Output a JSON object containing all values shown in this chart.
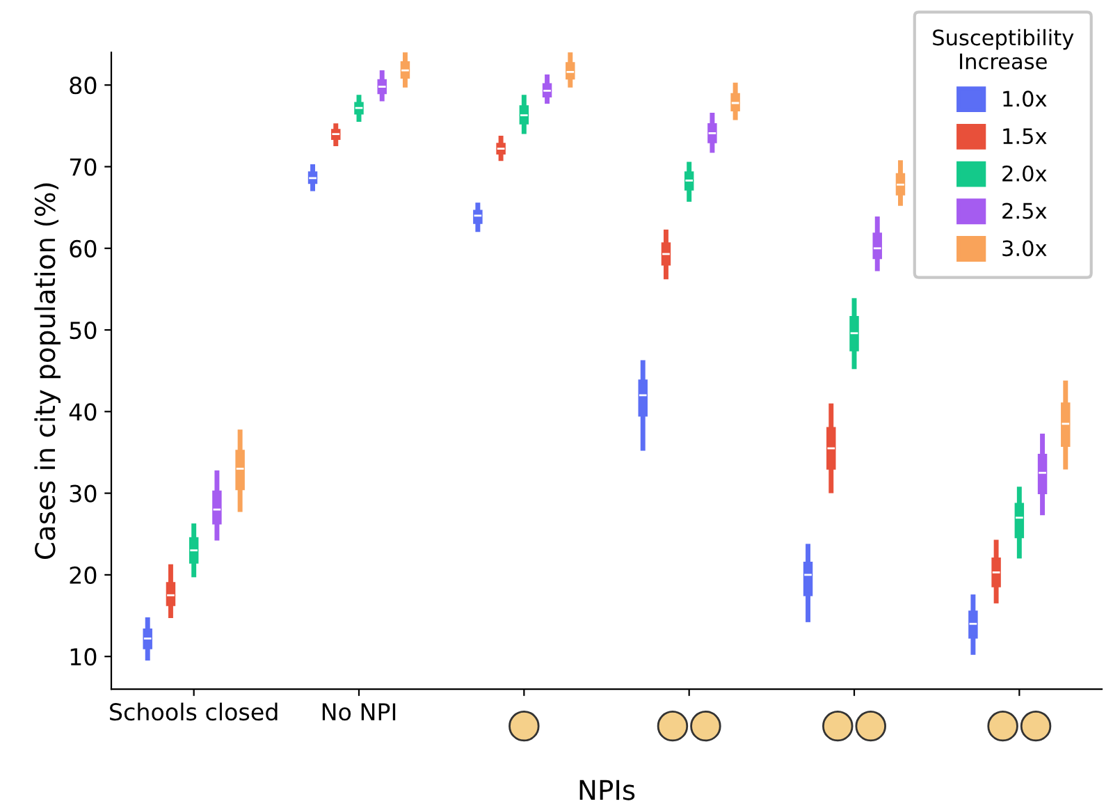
{
  "chart_data": {
    "type": "box",
    "xlabel": "NPIs",
    "ylabel": "Cases in city population (%)",
    "legend_title": "Susceptibility\nIncrease",
    "legend": "top right",
    "grid": false,
    "categories": [
      "Schools closed",
      "No NPI",
      null,
      null,
      null,
      null
    ],
    "ylim": [
      6,
      84
    ],
    "yticks": [
      10,
      20,
      30,
      40,
      50,
      60,
      70,
      80
    ],
    "series": [
      {
        "name": "1.0x",
        "color": "#5b6ef5",
        "boxes": [
          {
            "low": 9.8,
            "q1": 11.0,
            "median": 12.2,
            "q3": 13.3,
            "high": 14.5
          },
          {
            "low": 67.3,
            "q1": 68.0,
            "median": 68.6,
            "q3": 69.3,
            "high": 70.0
          },
          {
            "low": 62.3,
            "q1": 63.1,
            "median": 64.0,
            "q3": 64.6,
            "high": 65.3
          },
          {
            "low": 35.5,
            "q1": 39.5,
            "median": 42.0,
            "q3": 43.8,
            "high": 46.0
          },
          {
            "low": 14.5,
            "q1": 17.5,
            "median": 20.0,
            "q3": 21.5,
            "high": 23.5
          },
          {
            "low": 10.5,
            "q1": 12.3,
            "median": 14.0,
            "q3": 15.5,
            "high": 17.3
          }
        ]
      },
      {
        "name": "1.5x",
        "color": "#e8503a",
        "boxes": [
          {
            "low": 15.0,
            "q1": 16.3,
            "median": 17.5,
            "q3": 19.0,
            "high": 21.0
          },
          {
            "low": 72.8,
            "q1": 73.4,
            "median": 74.0,
            "q3": 74.5,
            "high": 75.0
          },
          {
            "low": 71.0,
            "q1": 71.6,
            "median": 72.2,
            "q3": 72.8,
            "high": 73.5
          },
          {
            "low": 56.5,
            "q1": 58.0,
            "median": 59.3,
            "q3": 60.6,
            "high": 62.0
          },
          {
            "low": 30.3,
            "q1": 33.0,
            "median": 35.5,
            "q3": 38.0,
            "high": 40.7
          },
          {
            "low": 16.8,
            "q1": 18.6,
            "median": 20.3,
            "q3": 22.0,
            "high": 24.0
          }
        ]
      },
      {
        "name": "2.0x",
        "color": "#14c98a",
        "boxes": [
          {
            "low": 20.0,
            "q1": 21.5,
            "median": 23.0,
            "q3": 24.5,
            "high": 26.0
          },
          {
            "low": 75.8,
            "q1": 76.5,
            "median": 77.2,
            "q3": 77.8,
            "high": 78.5
          },
          {
            "low": 74.3,
            "q1": 75.3,
            "median": 76.3,
            "q3": 77.4,
            "high": 78.5
          },
          {
            "low": 66.0,
            "q1": 67.2,
            "median": 68.3,
            "q3": 69.3,
            "high": 70.3
          },
          {
            "low": 45.5,
            "q1": 47.5,
            "median": 49.6,
            "q3": 51.6,
            "high": 53.6
          },
          {
            "low": 22.3,
            "q1": 24.6,
            "median": 27.0,
            "q3": 28.7,
            "high": 30.5
          }
        ]
      },
      {
        "name": "2.5x",
        "color": "#a55cf0",
        "boxes": [
          {
            "low": 24.5,
            "q1": 26.3,
            "median": 28.0,
            "q3": 30.2,
            "high": 32.5
          },
          {
            "low": 78.3,
            "q1": 79.0,
            "median": 79.8,
            "q3": 80.6,
            "high": 81.5
          },
          {
            "low": 78.0,
            "q1": 78.6,
            "median": 79.3,
            "q3": 80.1,
            "high": 81.0
          },
          {
            "low": 72.0,
            "q1": 73.0,
            "median": 74.1,
            "q3": 75.2,
            "high": 76.3
          },
          {
            "low": 57.5,
            "q1": 58.8,
            "median": 60.0,
            "q3": 61.8,
            "high": 63.6
          },
          {
            "low": 27.6,
            "q1": 30.0,
            "median": 32.5,
            "q3": 34.7,
            "high": 37.0
          }
        ]
      },
      {
        "name": "3.0x",
        "color": "#f9a35a",
        "boxes": [
          {
            "low": 28.0,
            "q1": 30.5,
            "median": 33.0,
            "q3": 35.2,
            "high": 37.5
          },
          {
            "low": 80.0,
            "q1": 80.9,
            "median": 81.8,
            "q3": 82.8,
            "high": 83.8
          },
          {
            "low": 80.0,
            "q1": 80.8,
            "median": 81.6,
            "q3": 82.7,
            "high": 83.8
          },
          {
            "low": 76.0,
            "q1": 76.9,
            "median": 77.8,
            "q3": 78.9,
            "high": 80.0
          },
          {
            "low": 65.5,
            "q1": 66.6,
            "median": 67.8,
            "q3": 69.1,
            "high": 70.5
          },
          {
            "low": 33.2,
            "q1": 35.8,
            "median": 38.5,
            "q3": 41.0,
            "high": 43.5
          }
        ]
      }
    ]
  }
}
